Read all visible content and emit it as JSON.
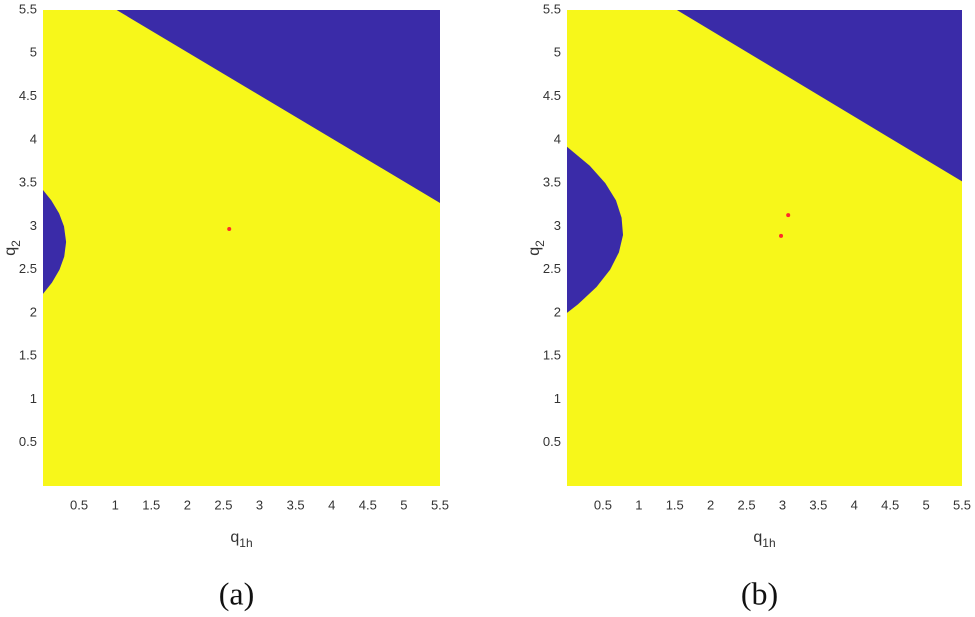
{
  "chart_data": [
    {
      "type": "region",
      "caption": "(a)",
      "x_label": {
        "text": "q",
        "sub": "1h"
      },
      "y_label": {
        "text": "q",
        "sub": "2"
      },
      "xlim": [
        0,
        5.5
      ],
      "ylim": [
        0,
        5.5
      ],
      "xticks": [
        0.5,
        1,
        1.5,
        2,
        2.5,
        3,
        3.5,
        4,
        4.5,
        5,
        5.5
      ],
      "yticks": [
        0.5,
        1,
        1.5,
        2,
        2.5,
        3,
        3.5,
        4,
        4.5,
        5,
        5.5
      ],
      "background": "#f7f71a",
      "regions": [
        {
          "color": "#3a2ba8",
          "x": [
            1.02,
            5.5,
            5.5
          ],
          "y": [
            5.5,
            5.5,
            3.27
          ]
        },
        {
          "color": "#3a2ba8",
          "x": [
            0,
            0.115,
            0.223,
            0.291,
            0.32,
            0.294,
            0.229,
            0.124,
            0
          ],
          "y": [
            3.42,
            3.3,
            3.15,
            3.0,
            2.82,
            2.65,
            2.5,
            2.35,
            2.22
          ]
        }
      ],
      "points": {
        "color": "#ff2a2a",
        "x": [
          2.58
        ],
        "y": [
          2.97
        ]
      }
    },
    {
      "type": "region",
      "caption": "(b)",
      "x_label": {
        "text": "q",
        "sub": "1h"
      },
      "y_label": {
        "text": "q",
        "sub": "2"
      },
      "xlim": [
        0,
        5.5
      ],
      "ylim": [
        0,
        5.5
      ],
      "xticks": [
        0.5,
        1,
        1.5,
        2,
        2.5,
        3,
        3.5,
        4,
        4.5,
        5,
        5.5
      ],
      "yticks": [
        0.5,
        1,
        1.5,
        2,
        2.5,
        3,
        3.5,
        4,
        4.5,
        5,
        5.5
      ],
      "background": "#f7f71a",
      "regions": [
        {
          "color": "#3a2ba8",
          "x": [
            1.53,
            5.5,
            5.5
          ],
          "y": [
            5.5,
            5.5,
            3.52
          ]
        },
        {
          "color": "#3a2ba8",
          "x": [
            0,
            0.317,
            0.533,
            0.682,
            0.76,
            0.78,
            0.723,
            0.601,
            0.411,
            0.154,
            0
          ],
          "y": [
            3.92,
            3.7,
            3.5,
            3.3,
            3.1,
            2.9,
            2.7,
            2.5,
            2.3,
            2.1,
            2.0
          ]
        }
      ],
      "points": {
        "color": "#ff2a2a",
        "x": [
          3.08,
          2.98
        ],
        "y": [
          3.13,
          2.89
        ]
      }
    }
  ]
}
